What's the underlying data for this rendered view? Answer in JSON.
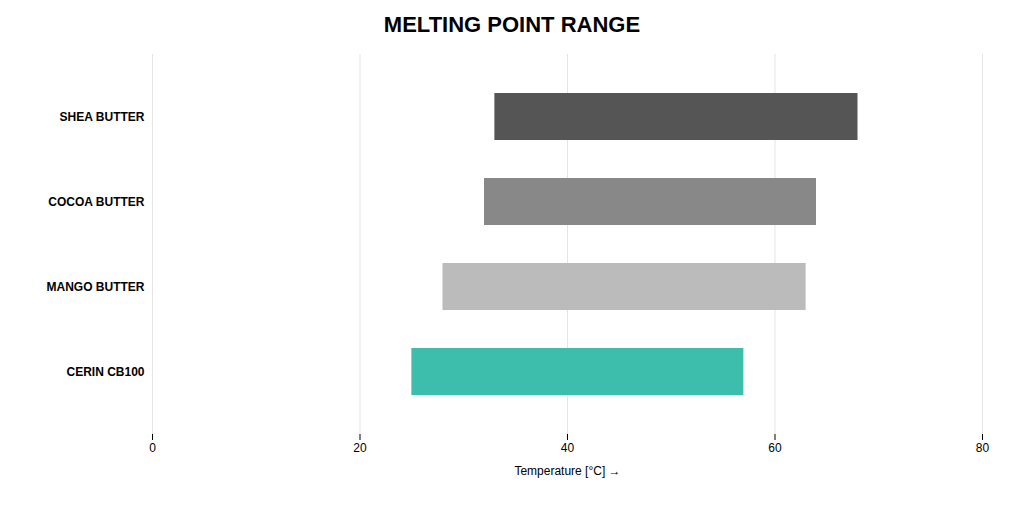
{
  "chart_data": {
    "type": "bar",
    "orientation": "horizontal",
    "title": "MELTING POINT RANGE",
    "xlabel": "Temperature [°C]",
    "categories": [
      "CERIN CB100",
      "MANGO BUTTER",
      "COCOA BUTTER",
      "SHEA BUTTER"
    ],
    "starts": [
      25,
      28,
      32,
      33
    ],
    "ends": [
      57,
      63,
      64,
      68
    ],
    "colors": [
      "#3dbdab",
      "#bbbbbb",
      "#888888",
      "#555555"
    ],
    "xlim": [
      0,
      80
    ],
    "xticks": [
      0,
      20,
      40,
      60,
      80
    ],
    "grid": true
  }
}
